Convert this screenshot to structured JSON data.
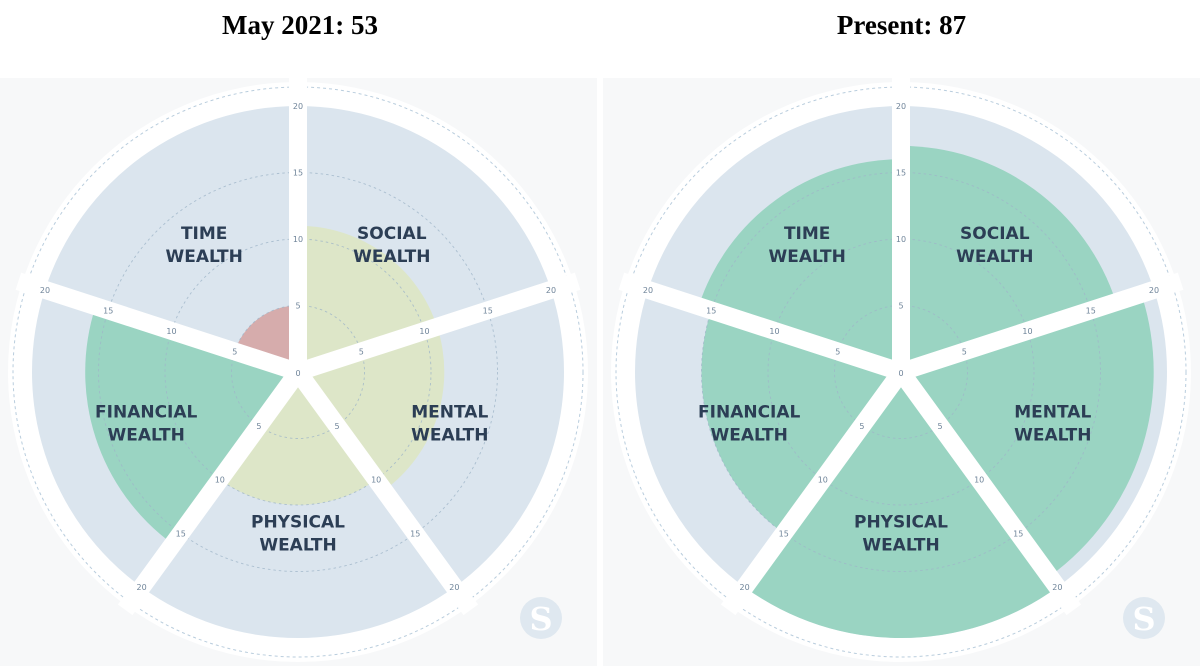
{
  "chart_data": [
    {
      "type": "polar-area",
      "title": "May 2021: 53",
      "r_max": 20,
      "ticks": [
        "0",
        "5",
        "10",
        "15",
        "20"
      ],
      "categories": [
        {
          "line1": "SOCIAL",
          "line2": "WEALTH",
          "value": 11
        },
        {
          "line1": "MENTAL",
          "line2": "WEALTH",
          "value": 11
        },
        {
          "line1": "PHYSICAL",
          "line2": "WEALTH",
          "value": 10
        },
        {
          "line1": "FINANCIAL",
          "line2": "WEALTH",
          "value": 16
        },
        {
          "line1": "TIME",
          "line2": "WEALTH",
          "value": 5
        }
      ],
      "colors": {
        "SOCIAL": "#dde6c8",
        "MENTAL": "#dde6c8",
        "PHYSICAL": "#dde6c8",
        "FINANCIAL": "#9ad4c2",
        "TIME": "#d6acac"
      }
    },
    {
      "type": "polar-area",
      "title": "Present: 87",
      "r_max": 20,
      "ticks": [
        "0",
        "5",
        "10",
        "15",
        "20"
      ],
      "categories": [
        {
          "line1": "SOCIAL",
          "line2": "WEALTH",
          "value": 17
        },
        {
          "line1": "MENTAL",
          "line2": "WEALTH",
          "value": 19
        },
        {
          "line1": "PHYSICAL",
          "line2": "WEALTH",
          "value": 20
        },
        {
          "line1": "FINANCIAL",
          "line2": "WEALTH",
          "value": 15
        },
        {
          "line1": "TIME",
          "line2": "WEALTH",
          "value": 16
        }
      ],
      "colors": {
        "SOCIAL": "#9ad4c2",
        "MENTAL": "#9ad4c2",
        "PHYSICAL": "#9ad4c2",
        "FINANCIAL": "#9ad4c2",
        "TIME": "#9ad4c2"
      }
    }
  ],
  "logo": {
    "letter": "S",
    "icon": "s-logo-icon"
  }
}
